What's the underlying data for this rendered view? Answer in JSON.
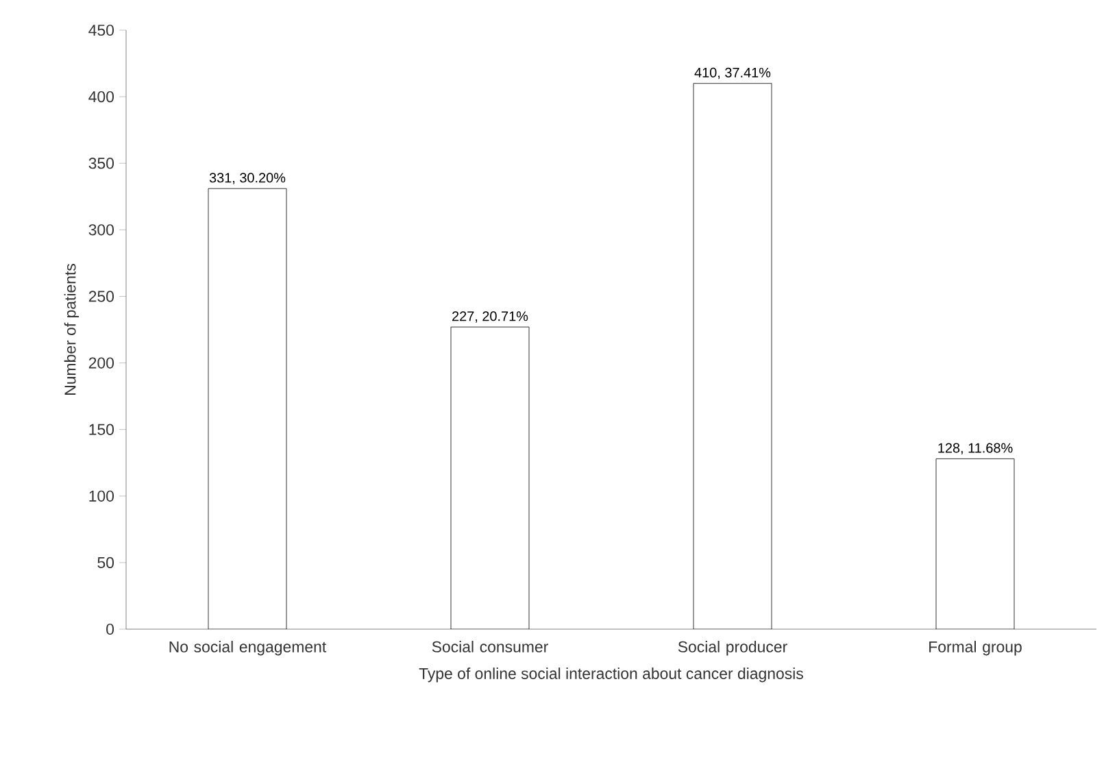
{
  "chart_data": {
    "type": "bar",
    "xlabel": "Type of online social interaction about cancer diagnosis",
    "ylabel": "Number of patients",
    "categories": [
      "No social engagement",
      "Social consumer",
      "Social producer",
      "Formal group"
    ],
    "values": [
      331,
      227,
      410,
      128
    ],
    "value_labels": [
      "331, 30.20%",
      "227, 20.71%",
      "410, 37.41%",
      "128, 11.68%"
    ],
    "color": "#ffffff",
    "ylim": [
      0,
      450
    ],
    "yticks": [
      0,
      50,
      100,
      150,
      200,
      250,
      300,
      350,
      400,
      450
    ]
  }
}
